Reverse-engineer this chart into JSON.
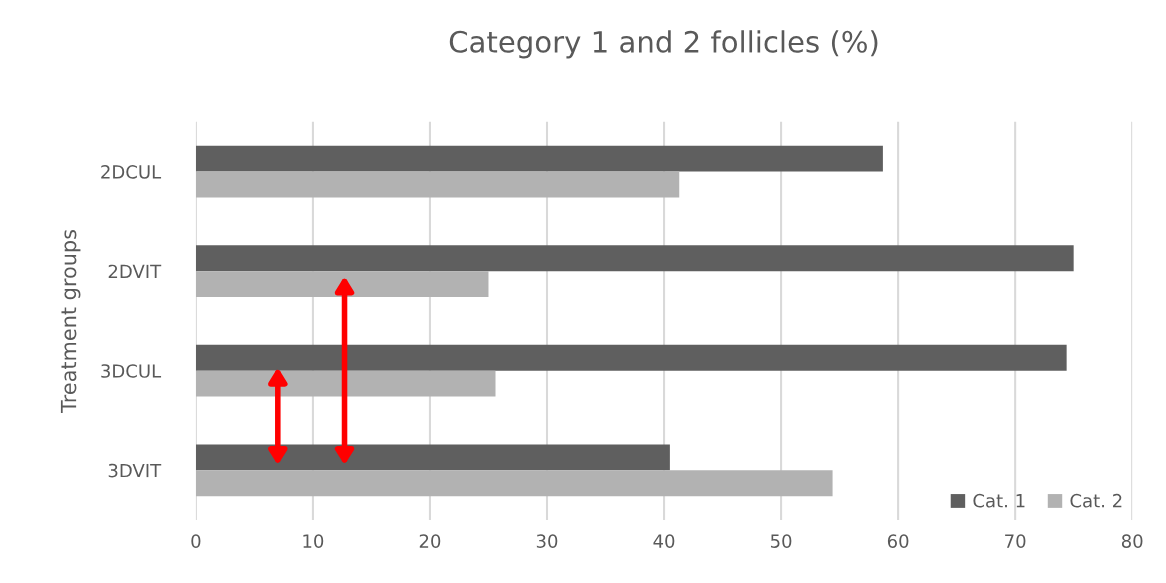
{
  "chart_data": {
    "type": "bar",
    "orientation": "horizontal",
    "title": "Category 1 and 2 follicles (%)",
    "ylabel": "Treatment groups",
    "categories": [
      "2DCUL",
      "2DVIT",
      "3DCUL",
      "3DVIT"
    ],
    "series": [
      {
        "name": "Cat. 1",
        "color": "#5f5f5f",
        "values": [
          58.7,
          75.0,
          74.4,
          40.5
        ]
      },
      {
        "name": "Cat. 2",
        "color": "#b2b2b2",
        "values": [
          41.3,
          25.0,
          25.6,
          54.4
        ]
      }
    ],
    "xlim": [
      0,
      80
    ],
    "xticks": [
      0,
      10,
      20,
      30,
      40,
      50,
      60,
      70,
      80
    ],
    "grid": "x",
    "legend": "bottom right"
  }
}
